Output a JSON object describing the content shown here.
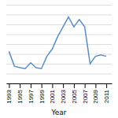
{
  "chart_data": {
    "type": "line",
    "x": [
      1993,
      1994,
      1995,
      1996,
      1997,
      1998,
      1999,
      2000,
      2001,
      2002,
      2003,
      2004,
      2005,
      2006,
      2007,
      2008,
      2009,
      2010,
      2011
    ],
    "values": [
      6.5,
      3.5,
      3.2,
      3.0,
      4.2,
      3.2,
      3.0,
      5.5,
      7.0,
      9.5,
      11.5,
      13.5,
      11.5,
      13.0,
      11.5,
      4.0,
      5.5,
      5.8,
      5.5
    ],
    "color": "#5b8ec4",
    "xlabel": "Year",
    "xlim": [
      1992.5,
      2012
    ],
    "ylim": [
      0,
      16
    ],
    "xticks": [
      1993,
      1995,
      1997,
      1999,
      2001,
      2003,
      2005,
      2007,
      2009,
      2011
    ],
    "yticks": [
      0,
      2,
      4,
      6,
      8,
      10,
      12,
      14,
      16
    ],
    "grid": true,
    "tick_labels": "x"
  }
}
